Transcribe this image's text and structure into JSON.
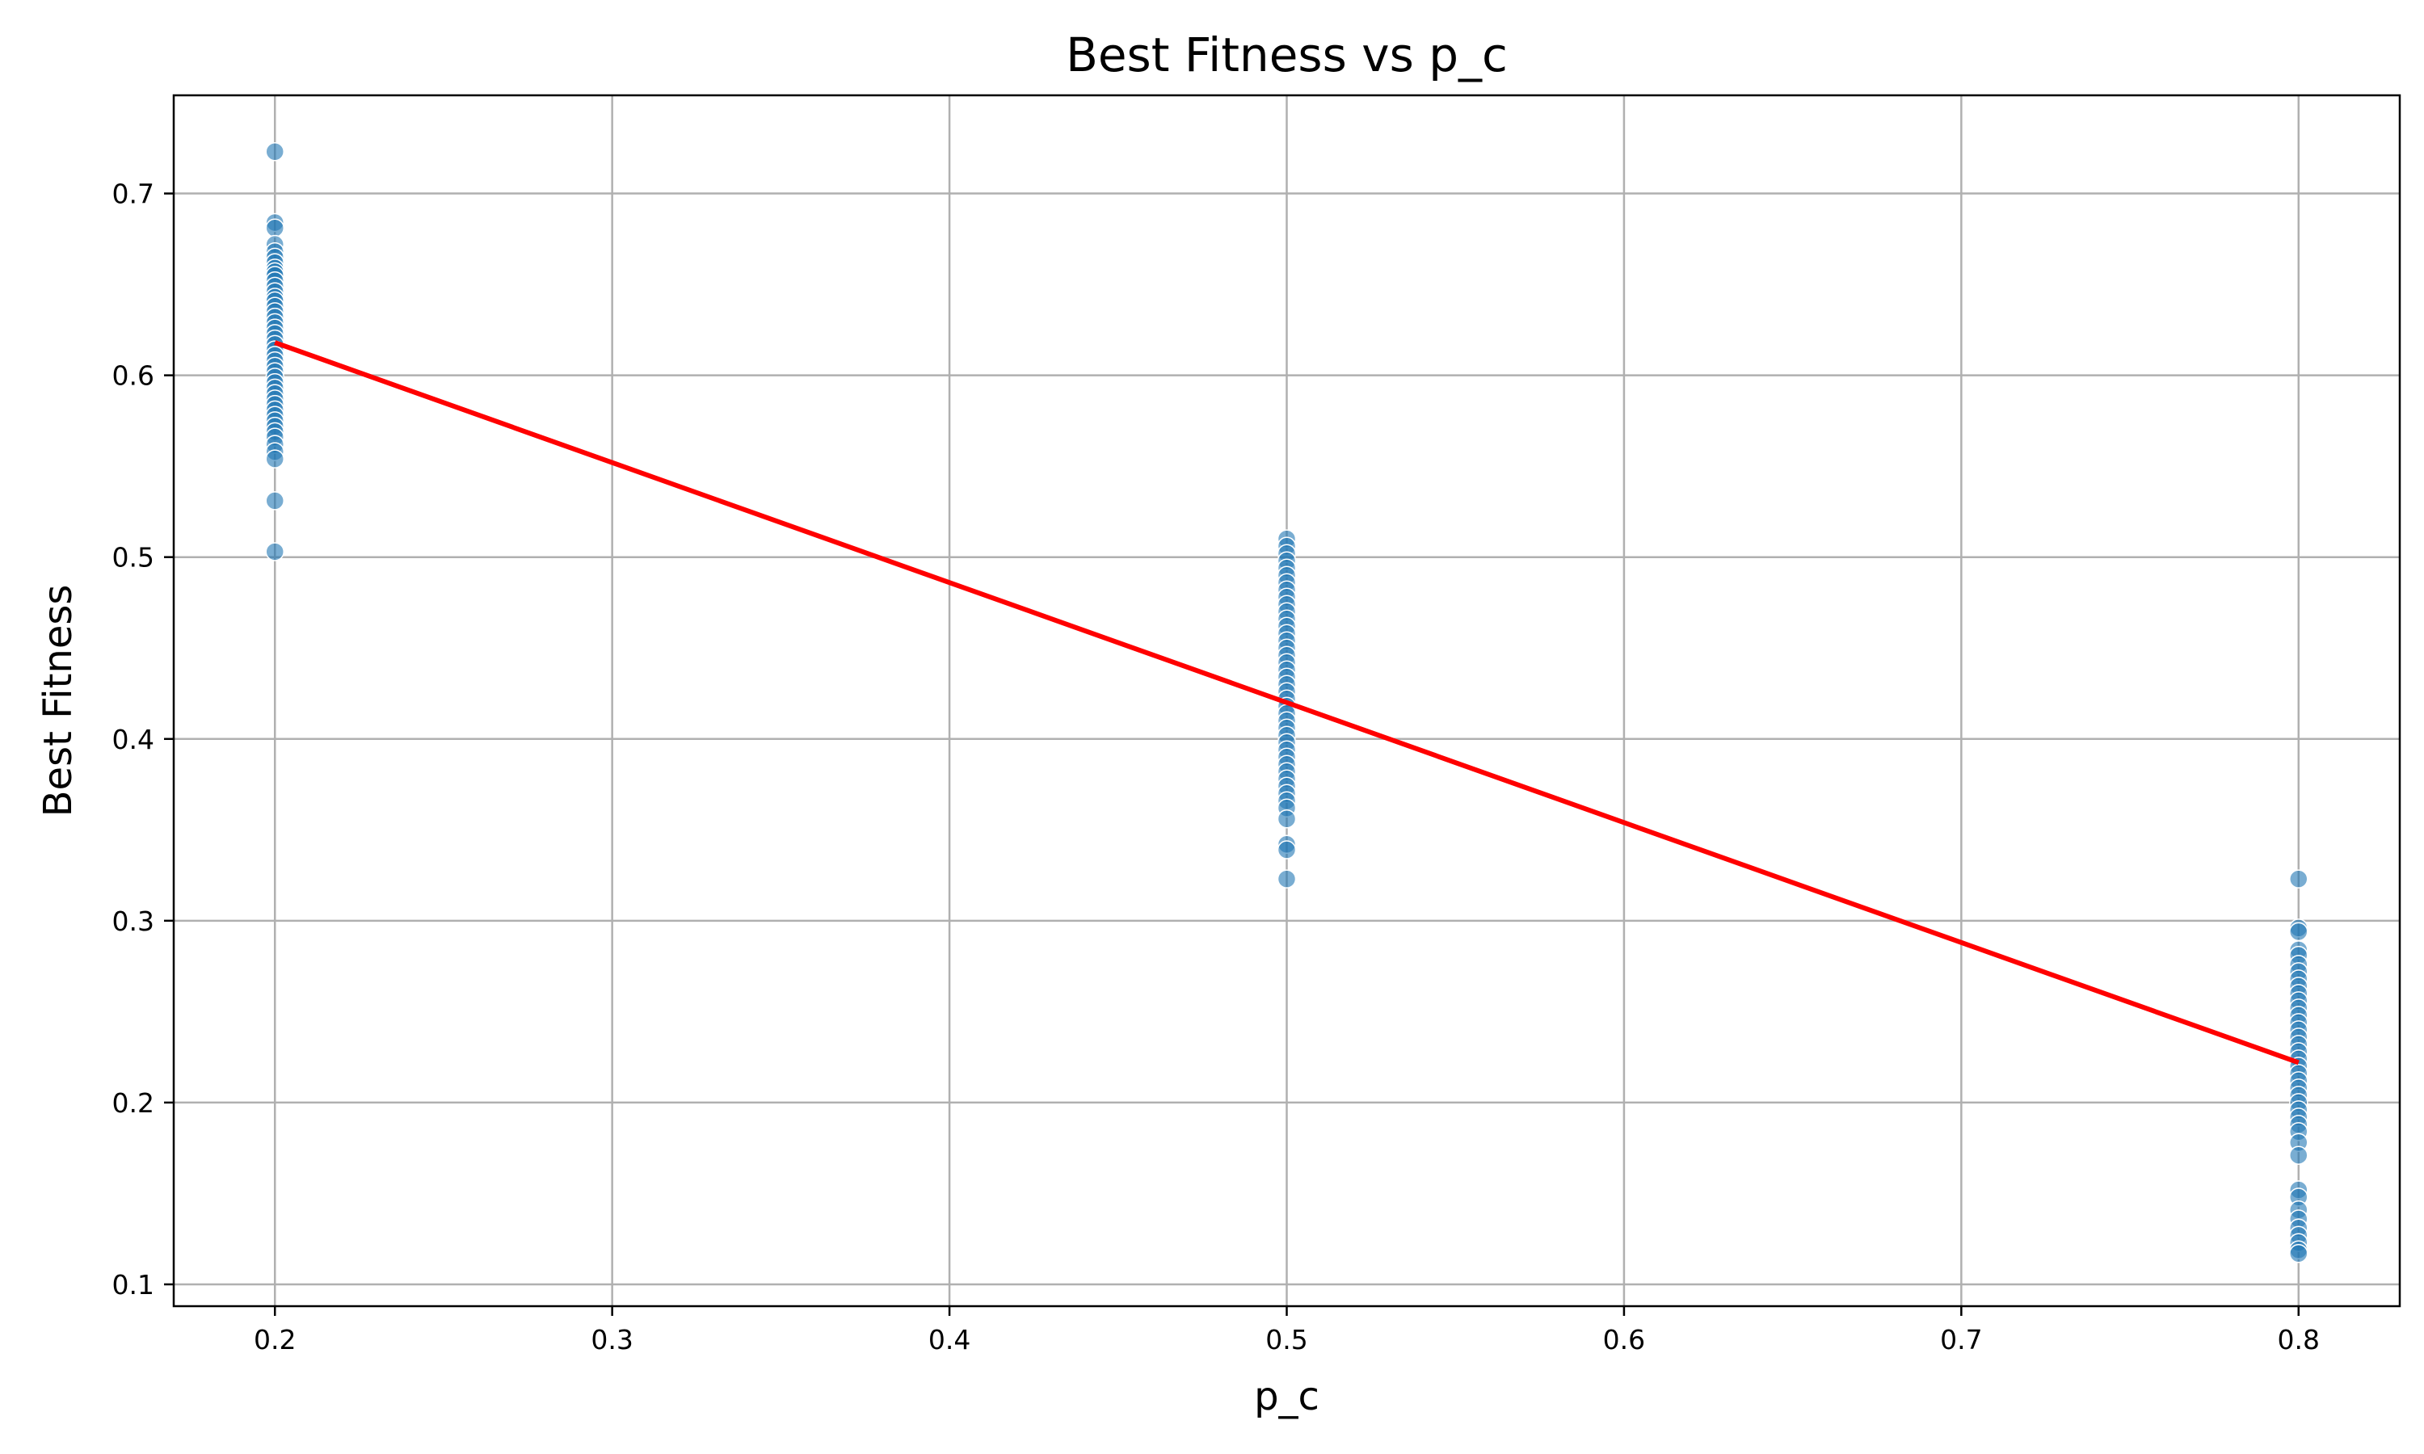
{
  "chart_data": {
    "type": "scatter",
    "title": "Best Fitness vs p_c",
    "xlabel": "p_c",
    "ylabel": "Best Fitness",
    "xlim": [
      0.17,
      0.83
    ],
    "ylim": [
      0.088,
      0.754
    ],
    "xticks": [
      0.2,
      0.3,
      0.4,
      0.5,
      0.6,
      0.7,
      0.8
    ],
    "yticks": [
      0.1,
      0.2,
      0.3,
      0.4,
      0.5,
      0.6,
      0.7
    ],
    "xtick_labels": [
      "0.2",
      "0.3",
      "0.4",
      "0.5",
      "0.6",
      "0.7",
      "0.8"
    ],
    "ytick_labels": [
      "0.1",
      "0.2",
      "0.3",
      "0.4",
      "0.5",
      "0.6",
      "0.7"
    ],
    "grid": true,
    "series": [
      {
        "type": "scatter",
        "color": "#1f77b4",
        "points": [
          {
            "x": 0.2,
            "y": [
              0.723,
              0.684,
              0.681,
              0.672,
              0.668,
              0.665,
              0.662,
              0.659,
              0.657,
              0.655,
              0.652,
              0.649,
              0.646,
              0.643,
              0.641,
              0.638,
              0.635,
              0.632,
              0.629,
              0.626,
              0.623,
              0.62,
              0.617,
              0.614,
              0.611,
              0.608,
              0.605,
              0.602,
              0.599,
              0.596,
              0.593,
              0.59,
              0.587,
              0.584,
              0.581,
              0.578,
              0.575,
              0.572,
              0.569,
              0.566,
              0.562,
              0.558,
              0.554,
              0.531,
              0.503
            ]
          },
          {
            "x": 0.5,
            "y": [
              0.51,
              0.506,
              0.502,
              0.498,
              0.494,
              0.49,
              0.486,
              0.482,
              0.478,
              0.474,
              0.47,
              0.466,
              0.462,
              0.458,
              0.454,
              0.45,
              0.446,
              0.442,
              0.438,
              0.434,
              0.43,
              0.426,
              0.422,
              0.418,
              0.414,
              0.41,
              0.406,
              0.402,
              0.398,
              0.394,
              0.39,
              0.386,
              0.382,
              0.378,
              0.374,
              0.37,
              0.366,
              0.362,
              0.356,
              0.342,
              0.339,
              0.323
            ]
          },
          {
            "x": 0.8,
            "y": [
              0.323,
              0.296,
              0.294,
              0.284,
              0.281,
              0.276,
              0.272,
              0.268,
              0.264,
              0.26,
              0.256,
              0.252,
              0.248,
              0.244,
              0.24,
              0.236,
              0.232,
              0.228,
              0.224,
              0.22,
              0.216,
              0.212,
              0.208,
              0.204,
              0.2,
              0.196,
              0.192,
              0.188,
              0.184,
              0.178,
              0.171,
              0.152,
              0.148,
              0.141,
              0.136,
              0.131,
              0.127,
              0.123,
              0.119,
              0.117
            ]
          }
        ]
      },
      {
        "type": "line",
        "color": "#ff0000",
        "x": [
          0.2,
          0.8
        ],
        "y": [
          0.618,
          0.222
        ]
      }
    ]
  }
}
